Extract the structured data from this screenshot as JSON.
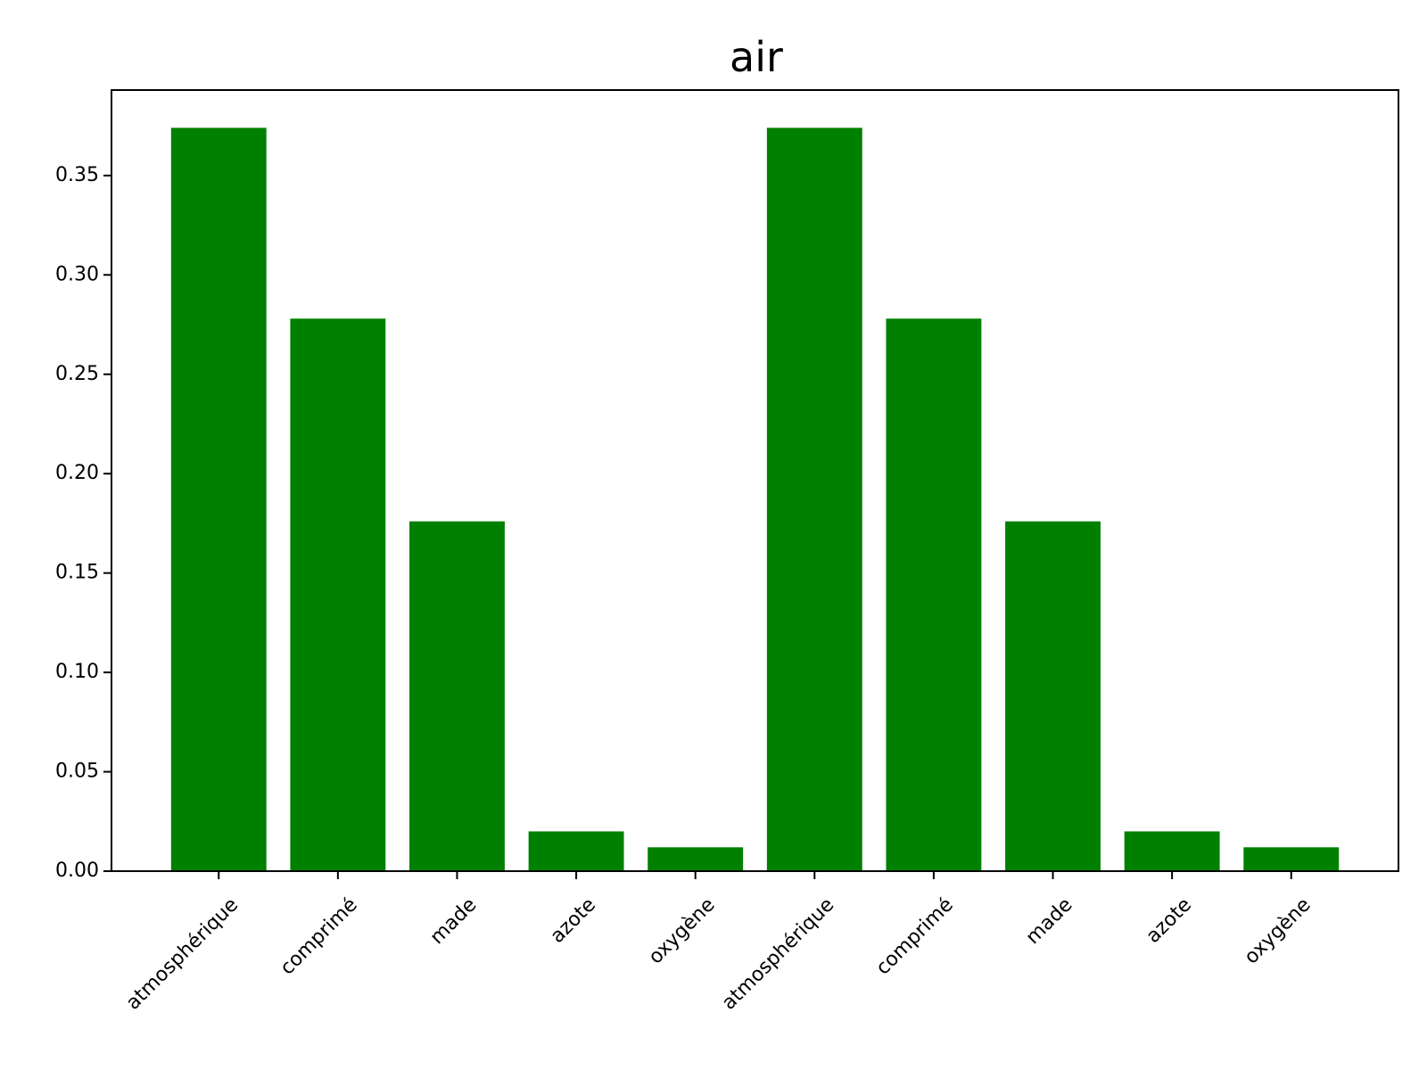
{
  "chart_data": {
    "type": "bar",
    "title": "air",
    "xlabel": "",
    "ylabel": "",
    "categories": [
      "atmosphérique",
      "comprimé",
      "made",
      "azote",
      "oxygène",
      "atmosphérique",
      "comprimé",
      "made",
      "azote",
      "oxygène"
    ],
    "values": [
      0.374,
      0.278,
      0.176,
      0.02,
      0.012,
      0.374,
      0.278,
      0.176,
      0.02,
      0.012
    ],
    "ylim": [
      0,
      0.393
    ],
    "yticks": [
      0.0,
      0.05,
      0.1,
      0.15,
      0.2,
      0.25,
      0.3,
      0.35
    ],
    "ytick_labels": [
      "0.00",
      "0.05",
      "0.10",
      "0.15",
      "0.20",
      "0.25",
      "0.30",
      "0.35"
    ],
    "bar_color": "#008000",
    "grid": false,
    "legend": "none"
  }
}
